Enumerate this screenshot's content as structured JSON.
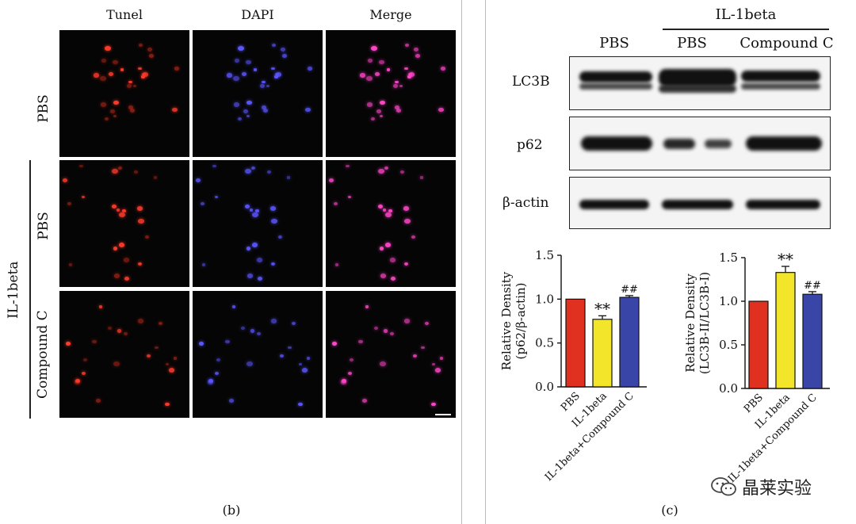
{
  "panel_b": {
    "column_titles": [
      "Tunel",
      "DAPI",
      "Merge"
    ],
    "row_labels": [
      "PBS",
      "PBS",
      "Compound C"
    ],
    "group_label": "IL-1beta",
    "caption": "(b)"
  },
  "panel_c": {
    "group_header": "IL-1beta",
    "lane_labels": [
      "PBS",
      "PBS",
      "Compound C"
    ],
    "blot_labels": [
      "LC3B",
      "p62",
      "β-actin"
    ],
    "caption": "(c)"
  },
  "watermark": "晶莱实验",
  "colors": {
    "red": "#e03020",
    "yellow": "#f2e52a",
    "blue": "#3a45a8"
  },
  "chart_data": [
    {
      "type": "bar",
      "title": "",
      "xlabel": "",
      "ylabel_line1": "Relative Density",
      "ylabel_line2": "(p62/β-actin)",
      "categories": [
        "PBS",
        "IL-1beta",
        "IL-1beta+Compound C"
      ],
      "values": [
        1.0,
        0.77,
        1.02
      ],
      "errors": [
        0.0,
        0.04,
        0.02
      ],
      "annotations": [
        "",
        "**",
        "##"
      ],
      "yticks": [
        "0.0",
        "0.5",
        "1.0",
        "1.5"
      ],
      "ylim": [
        0,
        1.5
      ]
    },
    {
      "type": "bar",
      "title": "",
      "xlabel": "",
      "ylabel_line1": "Relative Density",
      "ylabel_line2": "(LC3B-II/LC3B-I)",
      "categories": [
        "PBS",
        "IL-1beta",
        "IL-1beta+Compound C"
      ],
      "values": [
        1.0,
        1.33,
        1.08
      ],
      "errors": [
        0.0,
        0.07,
        0.03
      ],
      "annotations": [
        "",
        "**",
        "##"
      ],
      "yticks": [
        "0.0",
        "0.5",
        "1.0",
        "1.5"
      ],
      "ylim": [
        0,
        1.5
      ]
    }
  ]
}
